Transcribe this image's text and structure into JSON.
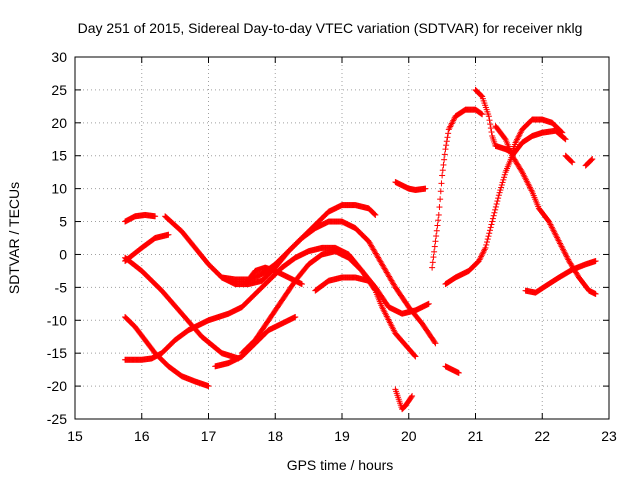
{
  "chart_data": {
    "type": "scatter",
    "title": "Day 251 of 2015, Sidereal Day-to-day VTEC variation (SDTVAR) for receiver nklg",
    "xlabel": "GPS time / hours",
    "ylabel": "SDTVAR / TECUs",
    "xlim": [
      15,
      23
    ],
    "ylim": [
      -25,
      30
    ],
    "xticks": [
      15,
      16,
      17,
      18,
      19,
      20,
      21,
      22,
      23
    ],
    "yticks": [
      -25,
      -20,
      -15,
      -10,
      -5,
      0,
      5,
      10,
      15,
      20,
      25,
      30
    ],
    "grid": true,
    "marker": "+",
    "color": "#ff0000",
    "series": [
      {
        "name": "s1",
        "points": [
          [
            15.75,
            5
          ],
          [
            15.9,
            5.8
          ],
          [
            16.05,
            6
          ],
          [
            16.2,
            5.8
          ]
        ]
      },
      {
        "name": "s2",
        "points": [
          [
            15.75,
            -1
          ],
          [
            16.0,
            1
          ],
          [
            16.2,
            2.5
          ],
          [
            16.4,
            3
          ]
        ]
      },
      {
        "name": "s3",
        "points": [
          [
            15.75,
            -0.5
          ],
          [
            16.0,
            -2.5
          ],
          [
            16.3,
            -5.5
          ],
          [
            16.6,
            -9
          ],
          [
            16.9,
            -12.5
          ],
          [
            17.2,
            -15
          ],
          [
            17.45,
            -15.8
          ]
        ]
      },
      {
        "name": "s4",
        "points": [
          [
            15.75,
            -9.5
          ],
          [
            15.9,
            -11
          ],
          [
            16.05,
            -13
          ],
          [
            16.2,
            -15
          ],
          [
            16.4,
            -17
          ],
          [
            16.6,
            -18.5
          ],
          [
            16.8,
            -19.3
          ],
          [
            17.0,
            -20
          ]
        ]
      },
      {
        "name": "s5",
        "points": [
          [
            15.75,
            -16
          ],
          [
            16.0,
            -16
          ],
          [
            16.15,
            -15.8
          ],
          [
            16.3,
            -15
          ],
          [
            16.5,
            -13
          ],
          [
            16.7,
            -11.5
          ],
          [
            17.0,
            -10
          ],
          [
            17.3,
            -9
          ],
          [
            17.5,
            -8
          ],
          [
            17.7,
            -6
          ],
          [
            17.9,
            -4
          ],
          [
            18.1,
            -2
          ],
          [
            18.3,
            -0.5
          ],
          [
            18.5,
            0.5
          ],
          [
            18.7,
            1
          ],
          [
            18.9,
            1
          ],
          [
            19.1,
            0
          ],
          [
            19.3,
            -2.5
          ],
          [
            19.5,
            -5
          ],
          [
            19.7,
            -8
          ],
          [
            19.9,
            -9
          ],
          [
            20.1,
            -8.5
          ],
          [
            20.3,
            -7.5
          ]
        ]
      },
      {
        "name": "s6",
        "points": [
          [
            16.35,
            5.8
          ],
          [
            16.6,
            3.5
          ],
          [
            16.8,
            1
          ],
          [
            17.0,
            -1.5
          ],
          [
            17.2,
            -3.5
          ],
          [
            17.4,
            -4.5
          ],
          [
            17.6,
            -4.5
          ],
          [
            17.8,
            -4
          ],
          [
            18.0,
            -2
          ],
          [
            18.2,
            0.5
          ],
          [
            18.4,
            2.5
          ],
          [
            18.6,
            4.5
          ],
          [
            18.8,
            6.5
          ],
          [
            19.0,
            7.5
          ],
          [
            19.2,
            7.5
          ],
          [
            19.4,
            7
          ],
          [
            19.5,
            6
          ]
        ]
      },
      {
        "name": "s7",
        "points": [
          [
            17.1,
            -17
          ],
          [
            17.3,
            -16.5
          ],
          [
            17.5,
            -15.5
          ],
          [
            17.7,
            -13.5
          ],
          [
            17.9,
            -11.5
          ],
          [
            18.1,
            -10.5
          ],
          [
            18.3,
            -9.5
          ]
        ]
      },
      {
        "name": "s8",
        "points": [
          [
            17.2,
            -3.5
          ],
          [
            17.4,
            -3.8
          ],
          [
            17.6,
            -3.8
          ],
          [
            17.8,
            -3
          ],
          [
            18.0,
            -1.5
          ],
          [
            18.2,
            0.5
          ],
          [
            18.4,
            2.5
          ],
          [
            18.6,
            4
          ],
          [
            18.8,
            5
          ],
          [
            19.0,
            5
          ],
          [
            19.2,
            4
          ],
          [
            19.4,
            2
          ],
          [
            19.6,
            -1.5
          ],
          [
            19.8,
            -5
          ],
          [
            20.0,
            -8
          ],
          [
            20.2,
            -10.5
          ],
          [
            20.4,
            -13.5
          ]
        ]
      },
      {
        "name": "s9",
        "points": [
          [
            17.5,
            -15
          ],
          [
            17.7,
            -13
          ],
          [
            17.9,
            -10
          ],
          [
            18.1,
            -7
          ],
          [
            18.3,
            -4
          ],
          [
            18.5,
            -1.5
          ],
          [
            18.7,
            0
          ],
          [
            18.9,
            0.5
          ],
          [
            19.1,
            -0.5
          ],
          [
            19.3,
            -2.5
          ],
          [
            19.5,
            -5.5
          ],
          [
            19.6,
            -8
          ],
          [
            19.8,
            -12
          ],
          [
            20.1,
            -15.5
          ]
        ]
      },
      {
        "name": "s10",
        "points": [
          [
            17.55,
            -4.5
          ],
          [
            17.7,
            -2.5
          ],
          [
            17.85,
            -2
          ],
          [
            18.0,
            -2.5
          ],
          [
            18.2,
            -3.5
          ],
          [
            18.4,
            -4.5
          ]
        ]
      },
      {
        "name": "s11",
        "points": [
          [
            18.6,
            -5.5
          ],
          [
            18.8,
            -4
          ],
          [
            19.0,
            -3.5
          ],
          [
            19.2,
            -3.5
          ],
          [
            19.4,
            -4
          ]
        ]
      },
      {
        "name": "s12",
        "points": [
          [
            19.8,
            -20.5
          ],
          [
            19.85,
            -22
          ],
          [
            19.9,
            -23.5
          ],
          [
            19.95,
            -23
          ],
          [
            20.05,
            -21.5
          ]
        ]
      },
      {
        "name": "s13",
        "points": [
          [
            19.8,
            11
          ],
          [
            19.9,
            10.5
          ],
          [
            20.0,
            10
          ],
          [
            20.1,
            9.8
          ],
          [
            20.25,
            10
          ]
        ]
      },
      {
        "name": "s14",
        "points": [
          [
            20.35,
            -2
          ],
          [
            20.4,
            2
          ],
          [
            20.45,
            6
          ],
          [
            20.5,
            12
          ],
          [
            20.55,
            16
          ],
          [
            20.6,
            19
          ],
          [
            20.7,
            21
          ],
          [
            20.85,
            22
          ],
          [
            21.0,
            22
          ],
          [
            21.1,
            21.3
          ]
        ]
      },
      {
        "name": "s15",
        "points": [
          [
            20.55,
            -17
          ],
          [
            20.65,
            -17.5
          ],
          [
            20.75,
            -18
          ]
        ]
      },
      {
        "name": "s16",
        "points": [
          [
            20.55,
            -4.5
          ],
          [
            20.7,
            -3.5
          ],
          [
            20.9,
            -2.5
          ],
          [
            21.05,
            -1
          ],
          [
            21.15,
            1
          ],
          [
            21.25,
            5
          ],
          [
            21.35,
            9
          ],
          [
            21.45,
            12.5
          ],
          [
            21.55,
            15
          ],
          [
            21.7,
            17
          ],
          [
            21.85,
            18
          ],
          [
            22.0,
            18.5
          ],
          [
            22.2,
            18.8
          ],
          [
            22.35,
            17.5
          ]
        ]
      },
      {
        "name": "s17",
        "points": [
          [
            21.0,
            25
          ],
          [
            21.1,
            24
          ],
          [
            21.2,
            21
          ],
          [
            21.25,
            18
          ],
          [
            21.3,
            16.5
          ]
        ]
      },
      {
        "name": "s18",
        "points": [
          [
            21.3,
            19.5
          ],
          [
            21.45,
            17.5
          ],
          [
            21.55,
            15
          ],
          [
            21.7,
            12.5
          ],
          [
            21.85,
            9.5
          ],
          [
            21.95,
            7
          ],
          [
            22.1,
            5
          ],
          [
            22.2,
            3
          ],
          [
            22.3,
            1
          ],
          [
            22.4,
            -1
          ],
          [
            22.55,
            -3.5
          ],
          [
            22.7,
            -5.5
          ],
          [
            22.8,
            -6
          ]
        ]
      },
      {
        "name": "s19",
        "points": [
          [
            21.3,
            16.5
          ],
          [
            21.45,
            16
          ],
          [
            21.55,
            15.5
          ],
          [
            21.6,
            17
          ],
          [
            21.7,
            19
          ],
          [
            21.85,
            20.5
          ],
          [
            22.0,
            20.5
          ],
          [
            22.15,
            20
          ],
          [
            22.3,
            18.5
          ]
        ]
      },
      {
        "name": "s20",
        "points": [
          [
            21.75,
            -5.5
          ],
          [
            21.9,
            -5.8
          ],
          [
            22.05,
            -4.8
          ],
          [
            22.25,
            -3.5
          ],
          [
            22.45,
            -2.3
          ],
          [
            22.65,
            -1.5
          ],
          [
            22.8,
            -1
          ]
        ]
      },
      {
        "name": "s21",
        "points": [
          [
            22.35,
            15
          ],
          [
            22.45,
            14
          ]
        ]
      },
      {
        "name": "s22",
        "points": [
          [
            22.65,
            13.5
          ],
          [
            22.75,
            14.5
          ]
        ]
      }
    ]
  }
}
